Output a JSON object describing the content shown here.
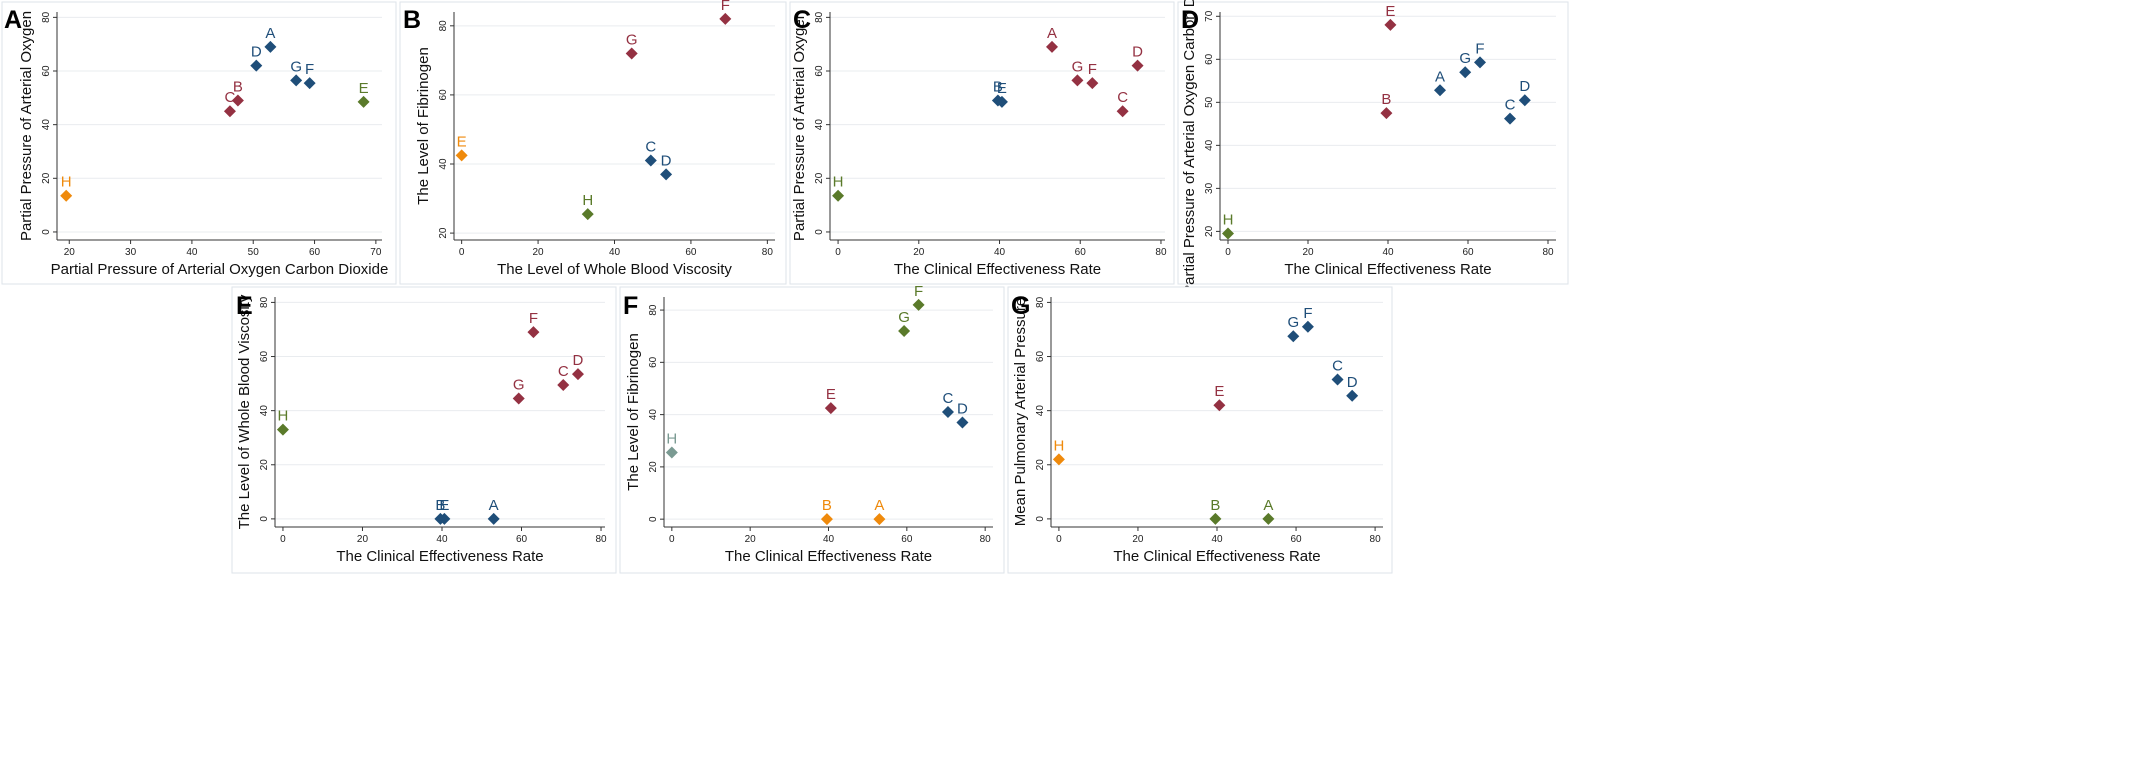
{
  "colors": {
    "blue": "#1f4e79",
    "red": "#943142",
    "green": "#5a7a2a",
    "orange": "#ef8a0c",
    "gray": "#7a9a92",
    "grid": "#e9ecef",
    "frame": "#dde3ea"
  },
  "chart_data": [
    {
      "panel": "A",
      "type": "scatter",
      "xlabel": "Partial Pressure of Arterial Oxygen Carbon Dioxide",
      "ylabel": "Partial Pressure of Arterial Oxygen",
      "xlim": [
        18,
        71
      ],
      "ylim": [
        -3,
        82
      ],
      "xticks": [
        20,
        30,
        40,
        50,
        60,
        70
      ],
      "yticks": [
        0,
        20,
        40,
        60,
        80
      ],
      "points": [
        {
          "label": "A",
          "x": 52.8,
          "y": 69,
          "color": "blue"
        },
        {
          "label": "B",
          "x": 47.5,
          "y": 49,
          "color": "red"
        },
        {
          "label": "C",
          "x": 46.2,
          "y": 45,
          "color": "red"
        },
        {
          "label": "D",
          "x": 50.5,
          "y": 62,
          "color": "blue"
        },
        {
          "label": "E",
          "x": 68,
          "y": 48.5,
          "color": "green"
        },
        {
          "label": "F",
          "x": 59.2,
          "y": 55.5,
          "color": "blue"
        },
        {
          "label": "G",
          "x": 57,
          "y": 56.5,
          "color": "blue"
        },
        {
          "label": "H",
          "x": 19.5,
          "y": 13.5,
          "color": "orange"
        }
      ]
    },
    {
      "panel": "B",
      "type": "scatter",
      "xlabel": "The Level of Whole Blood Viscosity",
      "ylabel": "The Level of Fibrinogen",
      "xlim": [
        -2,
        82
      ],
      "ylim": [
        18,
        84
      ],
      "xticks": [
        0,
        20,
        40,
        60,
        80
      ],
      "yticks": [
        20,
        40,
        60,
        80
      ],
      "points": [
        {
          "label": "C",
          "x": 49.5,
          "y": 41,
          "color": "blue"
        },
        {
          "label": "D",
          "x": 53.5,
          "y": 37,
          "color": "blue"
        },
        {
          "label": "E",
          "x": 0,
          "y": 42.5,
          "color": "orange"
        },
        {
          "label": "F",
          "x": 69,
          "y": 82,
          "color": "red"
        },
        {
          "label": "G",
          "x": 44.5,
          "y": 72,
          "color": "red"
        },
        {
          "label": "H",
          "x": 33,
          "y": 25.5,
          "color": "green"
        }
      ]
    },
    {
      "panel": "C",
      "type": "scatter",
      "xlabel": "The Clinical Effectiveness Rate",
      "ylabel": "Partial Pressure of Arterial Oxygen",
      "xlim": [
        -2,
        81
      ],
      "ylim": [
        -3,
        82
      ],
      "xticks": [
        0,
        20,
        40,
        60,
        80
      ],
      "yticks": [
        0,
        20,
        40,
        60,
        80
      ],
      "points": [
        {
          "label": "A",
          "x": 53,
          "y": 69,
          "color": "red"
        },
        {
          "label": "B",
          "x": 39.6,
          "y": 49,
          "color": "blue"
        },
        {
          "label": "C",
          "x": 70.5,
          "y": 45,
          "color": "red"
        },
        {
          "label": "D",
          "x": 74.2,
          "y": 62,
          "color": "red"
        },
        {
          "label": "E",
          "x": 40.6,
          "y": 48.5,
          "color": "blue"
        },
        {
          "label": "F",
          "x": 63,
          "y": 55.5,
          "color": "red"
        },
        {
          "label": "G",
          "x": 59.3,
          "y": 56.5,
          "color": "red"
        },
        {
          "label": "H",
          "x": 0,
          "y": 13.5,
          "color": "green"
        }
      ]
    },
    {
      "panel": "D",
      "type": "scatter",
      "xlabel": "The Clinical Effectiveness Rate",
      "ylabel": "Partial Pressure of Arterial Oxygen Carbon Dioxide",
      "xlim": [
        -2,
        82
      ],
      "ylim": [
        18,
        71
      ],
      "xticks": [
        0,
        20,
        40,
        60,
        80
      ],
      "yticks": [
        20,
        30,
        40,
        50,
        60,
        70
      ],
      "points": [
        {
          "label": "A",
          "x": 53,
          "y": 52.8,
          "color": "blue"
        },
        {
          "label": "B",
          "x": 39.6,
          "y": 47.5,
          "color": "red"
        },
        {
          "label": "C",
          "x": 70.5,
          "y": 46.2,
          "color": "blue"
        },
        {
          "label": "D",
          "x": 74.2,
          "y": 50.5,
          "color": "blue"
        },
        {
          "label": "E",
          "x": 40.6,
          "y": 68,
          "color": "red"
        },
        {
          "label": "F",
          "x": 63,
          "y": 59.3,
          "color": "blue"
        },
        {
          "label": "G",
          "x": 59.3,
          "y": 57,
          "color": "blue"
        },
        {
          "label": "H",
          "x": 0,
          "y": 19.5,
          "color": "green"
        }
      ]
    },
    {
      "panel": "E",
      "type": "scatter",
      "xlabel": "The Clinical Effectiveness Rate",
      "ylabel": "The Level of Whole Blood Viscosity",
      "xlim": [
        -2,
        81
      ],
      "ylim": [
        -3,
        82
      ],
      "xticks": [
        0,
        20,
        40,
        60,
        80
      ],
      "yticks": [
        0,
        20,
        40,
        60,
        80
      ],
      "points": [
        {
          "label": "A",
          "x": 53,
          "y": 0,
          "color": "blue"
        },
        {
          "label": "B",
          "x": 39.6,
          "y": 0,
          "color": "blue"
        },
        {
          "label": "C",
          "x": 70.5,
          "y": 49.5,
          "color": "red"
        },
        {
          "label": "D",
          "x": 74.2,
          "y": 53.5,
          "color": "red"
        },
        {
          "label": "E",
          "x": 40.6,
          "y": 0,
          "color": "blue"
        },
        {
          "label": "F",
          "x": 63,
          "y": 69,
          "color": "red"
        },
        {
          "label": "G",
          "x": 59.3,
          "y": 44.5,
          "color": "red"
        },
        {
          "label": "H",
          "x": 0,
          "y": 33,
          "color": "green"
        }
      ]
    },
    {
      "panel": "F",
      "type": "scatter",
      "xlabel": "The Clinical Effectiveness Rate",
      "ylabel": "The Level of Fibrinogen",
      "xlim": [
        -2,
        82
      ],
      "ylim": [
        -3,
        85
      ],
      "xticks": [
        0,
        20,
        40,
        60,
        80
      ],
      "yticks": [
        0,
        20,
        40,
        60,
        80
      ],
      "points": [
        {
          "label": "A",
          "x": 53,
          "y": 0,
          "color": "orange"
        },
        {
          "label": "B",
          "x": 39.6,
          "y": 0,
          "color": "orange"
        },
        {
          "label": "C",
          "x": 70.5,
          "y": 41,
          "color": "blue"
        },
        {
          "label": "D",
          "x": 74.2,
          "y": 37,
          "color": "blue"
        },
        {
          "label": "E",
          "x": 40.6,
          "y": 42.5,
          "color": "red"
        },
        {
          "label": "F",
          "x": 63,
          "y": 82,
          "color": "green"
        },
        {
          "label": "G",
          "x": 59.3,
          "y": 72,
          "color": "green"
        },
        {
          "label": "H",
          "x": 0,
          "y": 25.5,
          "color": "gray"
        }
      ]
    },
    {
      "panel": "G",
      "type": "scatter",
      "xlabel": "The Clinical Effectiveness Rate",
      "ylabel": "Mean Pulmonary Arterial Pressure",
      "xlim": [
        -2,
        82
      ],
      "ylim": [
        -3,
        82
      ],
      "xticks": [
        0,
        20,
        40,
        60,
        80
      ],
      "yticks": [
        0,
        20,
        40,
        60,
        80
      ],
      "points": [
        {
          "label": "A",
          "x": 53,
          "y": 0,
          "color": "green"
        },
        {
          "label": "B",
          "x": 39.6,
          "y": 0,
          "color": "green"
        },
        {
          "label": "C",
          "x": 70.5,
          "y": 51.5,
          "color": "blue"
        },
        {
          "label": "D",
          "x": 74.2,
          "y": 45.5,
          "color": "blue"
        },
        {
          "label": "E",
          "x": 40.6,
          "y": 42,
          "color": "red"
        },
        {
          "label": "F",
          "x": 63,
          "y": 71,
          "color": "blue"
        },
        {
          "label": "G",
          "x": 59.3,
          "y": 67.5,
          "color": "blue"
        },
        {
          "label": "H",
          "x": 0,
          "y": 22,
          "color": "orange"
        }
      ]
    }
  ]
}
